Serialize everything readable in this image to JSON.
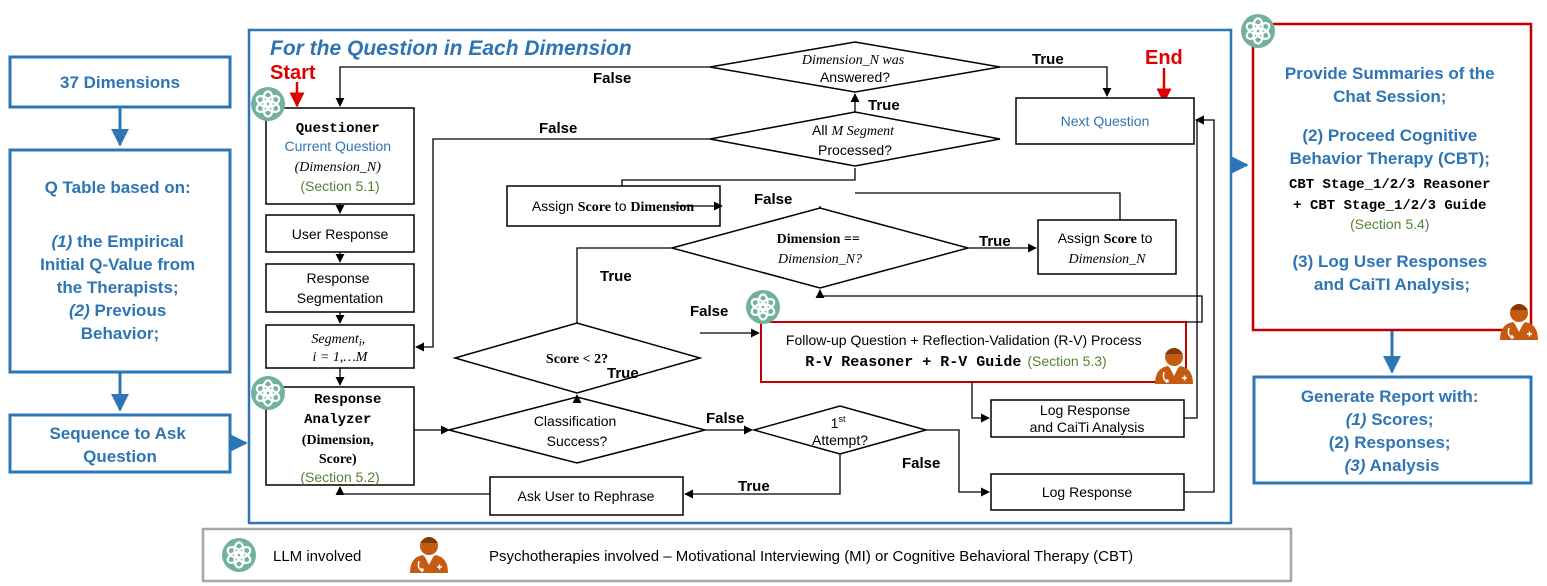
{
  "left": {
    "dimensions": "37 Dimensions",
    "qtable": [
      "Q Table based on:",
      "(1)",
      " the Empirical",
      "Initial Q-Value from",
      "the Therapists;",
      "(2)",
      " Previous",
      "Behavior;"
    ],
    "sequence": [
      "Sequence to Ask",
      "Question"
    ]
  },
  "main": {
    "title": "For the Question in Each Dimension",
    "start": "Start",
    "end": "End",
    "questioner": [
      "Questioner",
      "Current Question",
      "(Dimension_N)",
      "(Section 5.1)"
    ],
    "user_response": "User Response",
    "segmentation": [
      "Response",
      "Segmentation"
    ],
    "segment": [
      "Segment",
      "i",
      ",",
      "i = 1,…M"
    ],
    "analyzer": [
      "Response",
      "Analyzer",
      "(Dimension,",
      "Score)",
      "(Section 5.2)"
    ],
    "dimension_answered": [
      "Dimension_N was",
      "Answered?"
    ],
    "all_segments": [
      "All ",
      "M Segment",
      "Processed?"
    ],
    "next_question": "Next Question",
    "assign_dimension": [
      "Assign ",
      "Score",
      " to ",
      "Dimension"
    ],
    "assign_dimension_n": [
      "Assign ",
      "Score",
      " to",
      "Dimension_N"
    ],
    "dimension_eq": [
      "Dimension ==",
      "Dimension_N?"
    ],
    "score_lt": "Score < 2?",
    "followup": [
      "Follow-up Question + Reflection-Validation (R-V) Process",
      "R-V Reasoner + R-V Guide",
      "(Section 5.3)"
    ],
    "classification": [
      "Classification",
      "Success?"
    ],
    "first_attempt": [
      "1",
      "st",
      "Attempt?"
    ],
    "log_caiti": [
      "Log Response",
      "and CaiTi Analysis"
    ],
    "log_response": "Log Response",
    "ask_rephrase": "Ask User to Rephrase",
    "edge_true": "True",
    "edge_false": "False"
  },
  "right": {
    "summary": [
      "Provide Summaries of the",
      "Chat Session;",
      "(2) Proceed Cognitive",
      "Behavior Therapy (CBT);",
      "CBT Stage_1/2/3 Reasoner",
      "+ CBT Stage_1/2/3 Guide",
      "(Section 5.4)",
      "(3) Log User Responses",
      "and CaiTI Analysis;"
    ],
    "report": [
      "Generate Report with:",
      "(1)",
      " Scores;",
      "(2)  Responses;",
      "(3)",
      " Analysis"
    ]
  },
  "legend": {
    "llm": "LLM involved",
    "psycho": "Psychotherapies involved – Motivational Interviewing (MI) or Cognitive Behavioral Therapy (CBT)"
  },
  "colors": {
    "blue": "#2e75b6",
    "red": "#c00000",
    "green": "#548235",
    "llm_icon": "#73b29a",
    "therapist": "#c55a11"
  },
  "icons": [
    "llm-logo-icon",
    "therapist-icon",
    "arrow-icon"
  ]
}
